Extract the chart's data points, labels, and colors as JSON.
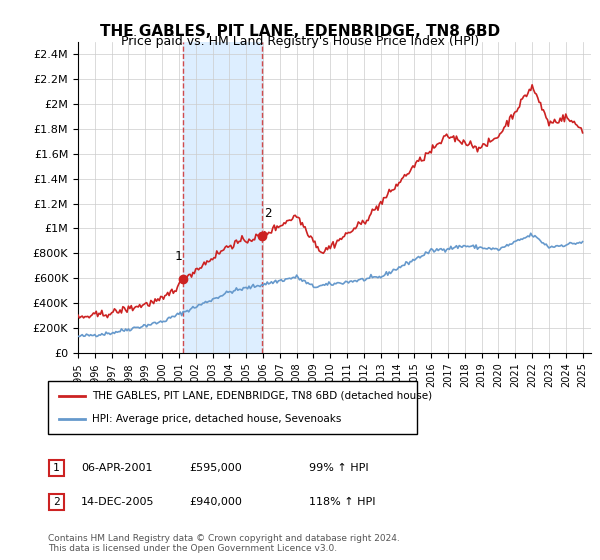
{
  "title": "THE GABLES, PIT LANE, EDENBRIDGE, TN8 6BD",
  "subtitle": "Price paid vs. HM Land Registry's House Price Index (HPI)",
  "legend_line1": "THE GABLES, PIT LANE, EDENBRIDGE, TN8 6BD (detached house)",
  "legend_line2": "HPI: Average price, detached house, Sevenoaks",
  "purchase1_date": "06-APR-2001",
  "purchase1_price": "£595,000",
  "purchase1_hpi": "99% ↑ HPI",
  "purchase1_year": 2001.27,
  "purchase1_value": 595000,
  "purchase2_date": "14-DEC-2005",
  "purchase2_price": "£940,000",
  "purchase2_hpi": "118% ↑ HPI",
  "purchase2_year": 2005.96,
  "purchase2_value": 940000,
  "footer": "Contains HM Land Registry data © Crown copyright and database right 2024.\nThis data is licensed under the Open Government Licence v3.0.",
  "hpi_color": "#6699cc",
  "price_color": "#cc2222",
  "shaded_color": "#ddeeff",
  "ylim_min": 0,
  "ylim_max": 2500000,
  "xmin": 1995,
  "xmax": 2025.5,
  "yticks": [
    0,
    200000,
    400000,
    600000,
    800000,
    1000000,
    1200000,
    1400000,
    1600000,
    1800000,
    2000000,
    2200000,
    2400000
  ],
  "ytick_labels": [
    "£0",
    "£200K",
    "£400K",
    "£600K",
    "£800K",
    "£1M",
    "£1.2M",
    "£1.4M",
    "£1.6M",
    "£1.8M",
    "£2M",
    "£2.2M",
    "£2.4M"
  ]
}
